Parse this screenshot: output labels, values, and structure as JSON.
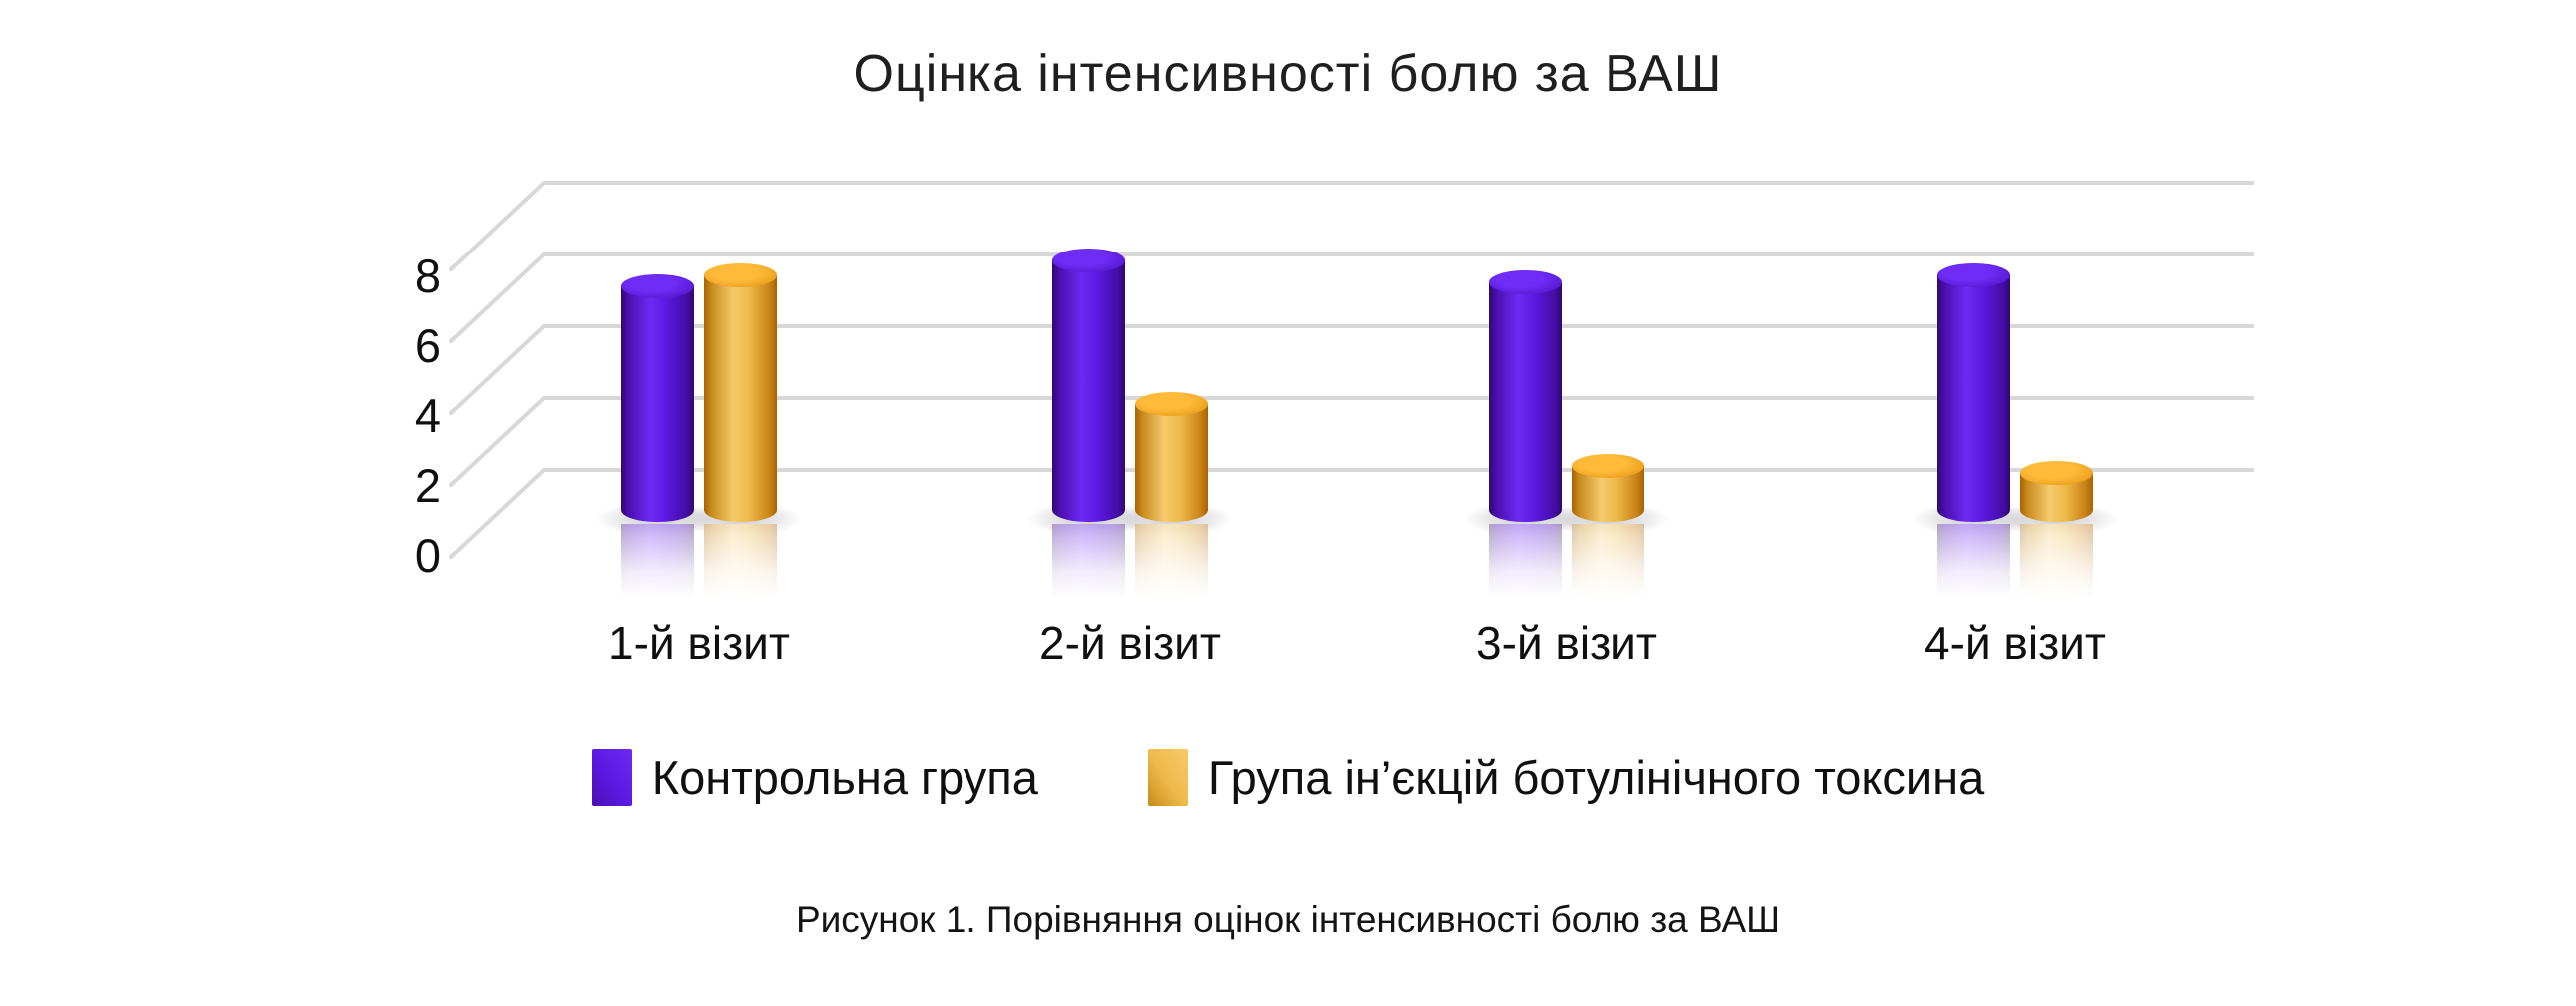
{
  "title": "Оцінка інтенсивності болю за ВАШ",
  "caption": "Рисунок 1. Порівняння оцінок інтенсивності болю за ВАШ",
  "chart_data": {
    "type": "bar",
    "subtype": "3d-cylinder",
    "title": "Оцінка інтенсивності болю за ВАШ",
    "categories": [
      "1-й візит",
      "2-й візит",
      "3-й візит",
      "4-й візит"
    ],
    "series": [
      {
        "name": "Контрольна група",
        "color": "#5517dd",
        "values": [
          6.9,
          7.6,
          7.0,
          7.2
        ]
      },
      {
        "name": "Група ін’єкцій ботулінічного токсина",
        "color": "#edb849",
        "values": [
          7.2,
          3.6,
          1.9,
          1.7
        ]
      }
    ],
    "xlabel": "",
    "ylabel": "",
    "yticks": [
      0,
      2,
      4,
      6,
      8
    ],
    "ylim": [
      0,
      8
    ],
    "grid": "horizontal-3d",
    "legend_position": "bottom",
    "caption": "Рисунок 1. Порівняння оцінок інтенсивності болю за ВАШ"
  },
  "palette": {
    "background": "#ffffff",
    "grid_color": "#d8d8d8",
    "text_color": "#101010",
    "series_styles": [
      {
        "name": "purple",
        "body_left": "#31086f",
        "body_edge": "#4a0fae",
        "body_light": "#6d2af3",
        "body_mid": "#5b19e2",
        "body_right": "#430da6",
        "cap_light": "#6e2cf6",
        "cap_dark": "#4a10bf"
      },
      {
        "name": "gold",
        "body_left": "#a76300",
        "body_edge": "#c78a1d",
        "body_light": "#f6ca6b",
        "body_mid": "#eeb94a",
        "body_right": "#c98115",
        "cap_light": "#ffba3a",
        "cap_dark": "#dd8f0a"
      }
    ]
  }
}
